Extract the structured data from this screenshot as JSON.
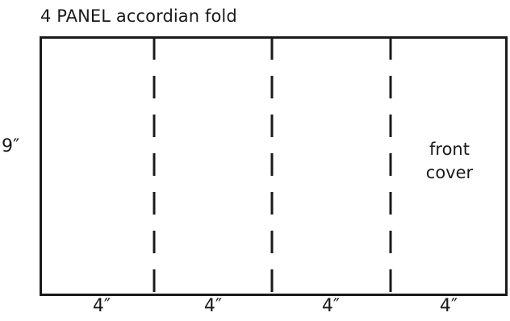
{
  "title": "4 PANEL accordian fold",
  "height_label": "9″",
  "width_labels": [
    "4″",
    "4″",
    "4″",
    "4″"
  ],
  "front_panel": {
    "line1": "front",
    "line2": "cover"
  },
  "colors": {
    "stroke": "#1a1a1a",
    "background": "#ffffff"
  }
}
